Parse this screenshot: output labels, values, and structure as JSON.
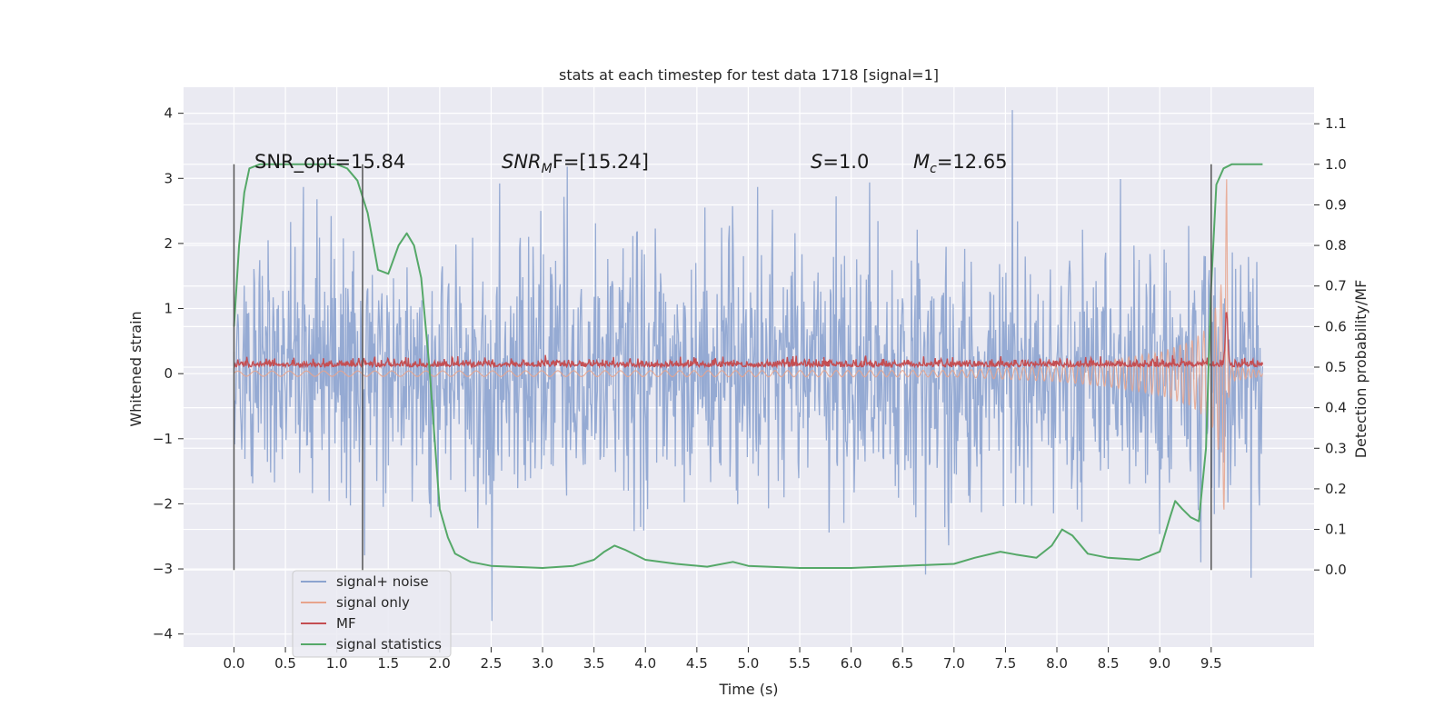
{
  "chart_data": {
    "type": "line",
    "title": "stats at each timestep for test data 1718 [signal=1]",
    "xlabel": "Time (s)",
    "ylabel": "Whitened strain",
    "y2label": "Detection probability/MF",
    "xlim": [
      -0.49,
      10.5
    ],
    "ylim": [
      -4.2,
      4.4
    ],
    "y2lim": [
      -0.19,
      1.19
    ],
    "x_ticks": [
      "0.0",
      "0.5",
      "1.0",
      "1.5",
      "2.0",
      "2.5",
      "3.0",
      "3.5",
      "4.0",
      "4.5",
      "5.0",
      "5.5",
      "6.0",
      "6.5",
      "7.0",
      "7.5",
      "8.0",
      "8.5",
      "9.0",
      "9.5"
    ],
    "y_ticks": [
      "4",
      "3",
      "2",
      "1",
      "0",
      "−1",
      "−2",
      "−3",
      "−4"
    ],
    "y2_ticks": [
      "1.1",
      "1.0",
      "0.9",
      "0.8",
      "0.7",
      "0.6",
      "0.5",
      "0.4",
      "0.3",
      "0.2",
      "0.1",
      "0.0"
    ],
    "grid": true,
    "legend_position": "lower-left",
    "annotations": {
      "snr_opt": "SNR_opt=15.84",
      "snr_mf_sym": "SNR",
      "snr_mf_sub": "M",
      "snr_mf_rest": "F=[15.24]",
      "s_sym": "S",
      "s_rest": "=1.0",
      "mc_sym": "M",
      "mc_sub": "c",
      "mc_rest": "=12.65"
    },
    "vertical_markers_s": [
      0.0,
      1.25,
      9.5
    ],
    "series": [
      {
        "name": "signal+ noise",
        "axis": "left",
        "color": "#8ca3cf",
        "description_stats": {
          "typical_range": [
            -1.9,
            2.0
          ],
          "extremes": [
            -3.8,
            4.05
          ]
        },
        "x_range": [
          0.0,
          10.0
        ]
      },
      {
        "name": "signal only",
        "axis": "left",
        "color": "#e7a48d",
        "envelope": {
          "x": [
            0.0,
            7.0,
            8.0,
            8.5,
            9.0,
            9.3,
            9.5,
            9.6,
            9.65,
            9.68,
            10.0
          ],
          "amp": [
            0.04,
            0.05,
            0.12,
            0.2,
            0.33,
            0.5,
            0.75,
            1.4,
            3.0,
            0.3,
            0.1
          ]
        }
      },
      {
        "name": "MF",
        "axis": "right",
        "color": "#c44e52",
        "baseline": 0.505,
        "peak": {
          "x": 9.65,
          "y": 0.63
        }
      },
      {
        "name": "signal statistics",
        "axis": "right",
        "color": "#55a868",
        "x": [
          0.0,
          0.05,
          0.1,
          0.15,
          0.25,
          0.5,
          0.8,
          1.0,
          1.1,
          1.2,
          1.3,
          1.4,
          1.5,
          1.6,
          1.68,
          1.75,
          1.82,
          1.9,
          2.0,
          2.08,
          2.15,
          2.3,
          2.5,
          3.0,
          3.3,
          3.5,
          3.6,
          3.7,
          3.8,
          4.0,
          4.3,
          4.6,
          4.85,
          5.0,
          5.5,
          6.0,
          6.5,
          7.0,
          7.2,
          7.45,
          7.6,
          7.8,
          7.95,
          8.05,
          8.15,
          8.3,
          8.5,
          8.8,
          9.0,
          9.1,
          9.15,
          9.22,
          9.3,
          9.38,
          9.45,
          9.5,
          9.55,
          9.62,
          9.7,
          9.85,
          10.0
        ],
        "y": [
          0.6,
          0.8,
          0.93,
          0.99,
          1.0,
          1.0,
          1.0,
          1.0,
          0.99,
          0.96,
          0.88,
          0.74,
          0.73,
          0.8,
          0.83,
          0.8,
          0.72,
          0.5,
          0.15,
          0.08,
          0.04,
          0.02,
          0.01,
          0.005,
          0.01,
          0.025,
          0.045,
          0.06,
          0.05,
          0.025,
          0.015,
          0.008,
          0.02,
          0.01,
          0.005,
          0.005,
          0.01,
          0.015,
          0.03,
          0.045,
          0.038,
          0.03,
          0.06,
          0.1,
          0.085,
          0.04,
          0.03,
          0.025,
          0.045,
          0.13,
          0.17,
          0.15,
          0.13,
          0.12,
          0.3,
          0.7,
          0.95,
          0.99,
          1.0,
          1.0,
          1.0
        ]
      }
    ],
    "legend": [
      "signal+ noise",
      "signal only",
      "MF",
      "signal statistics"
    ]
  }
}
